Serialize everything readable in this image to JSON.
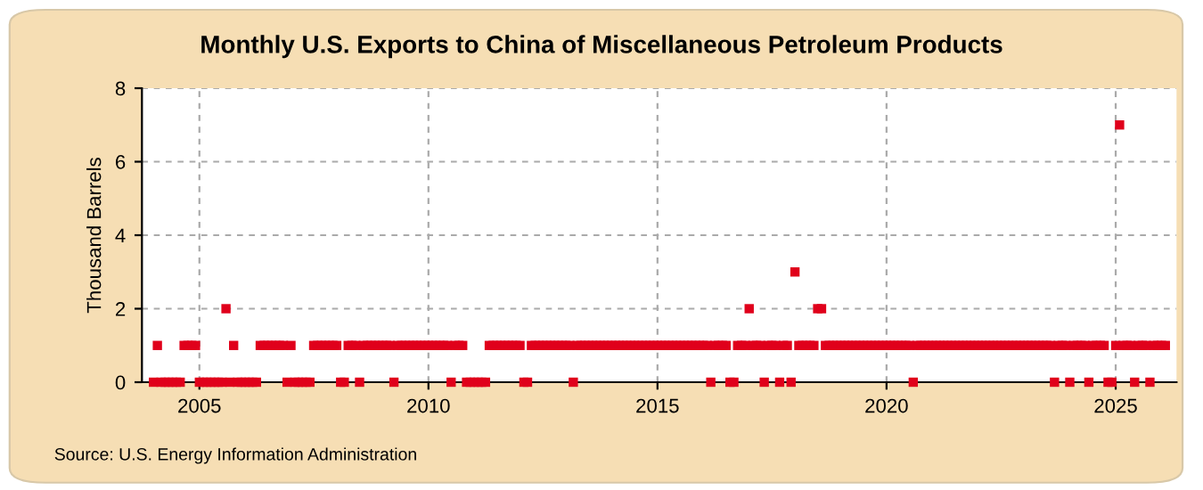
{
  "chart_data": {
    "type": "scatter",
    "title": "Monthly U.S. Exports to China of Miscellaneous Petroleum Products",
    "ylabel": "Thousand Barrels",
    "annotations": [
      "Source: U.S. Energy Information Administration"
    ],
    "x": [
      "2004-01",
      "2004-02",
      "2004-03",
      "2004-04",
      "2004-05",
      "2004-06",
      "2004-07",
      "2004-08",
      "2004-09",
      "2004-10",
      "2004-11",
      "2004-12",
      "2005-01",
      "2005-02",
      "2005-03",
      "2005-04",
      "2005-05",
      "2005-06",
      "2005-07",
      "2005-08",
      "2005-09",
      "2005-10",
      "2005-11",
      "2005-12",
      "2006-01",
      "2006-02",
      "2006-03",
      "2006-04",
      "2006-05",
      "2006-06",
      "2006-07",
      "2006-08",
      "2006-09",
      "2006-10",
      "2006-11",
      "2006-12",
      "2007-01",
      "2007-02",
      "2007-03",
      "2007-04",
      "2007-05",
      "2007-06",
      "2007-07",
      "2007-08",
      "2007-09",
      "2007-10",
      "2007-11",
      "2007-12",
      "2008-01",
      "2008-02",
      "2008-03",
      "2008-04",
      "2008-05",
      "2008-06",
      "2008-07",
      "2008-08",
      "2008-09",
      "2008-10",
      "2008-11",
      "2008-12",
      "2009-01",
      "2009-02",
      "2009-03",
      "2009-04",
      "2009-05",
      "2009-06",
      "2009-07",
      "2009-08",
      "2009-09",
      "2009-10",
      "2009-11",
      "2009-12",
      "2010-01",
      "2010-02",
      "2010-03",
      "2010-04",
      "2010-05",
      "2010-06",
      "2010-07",
      "2010-08",
      "2010-09",
      "2010-10",
      "2010-11",
      "2010-12",
      "2011-01",
      "2011-02",
      "2011-03",
      "2011-04",
      "2011-05",
      "2011-06",
      "2011-07",
      "2011-08",
      "2011-09",
      "2011-10",
      "2011-11",
      "2011-12",
      "2012-01",
      "2012-02",
      "2012-03",
      "2012-04",
      "2012-05",
      "2012-06",
      "2012-07",
      "2012-08",
      "2012-09",
      "2012-10",
      "2012-11",
      "2012-12",
      "2013-01",
      "2013-02",
      "2013-03",
      "2013-04",
      "2013-05",
      "2013-06",
      "2013-07",
      "2013-08",
      "2013-09",
      "2013-10",
      "2013-11",
      "2013-12",
      "2014-01",
      "2014-02",
      "2014-03",
      "2014-04",
      "2014-05",
      "2014-06",
      "2014-07",
      "2014-08",
      "2014-09",
      "2014-10",
      "2014-11",
      "2014-12",
      "2015-01",
      "2015-02",
      "2015-03",
      "2015-04",
      "2015-05",
      "2015-06",
      "2015-07",
      "2015-08",
      "2015-09",
      "2015-10",
      "2015-11",
      "2015-12",
      "2016-01",
      "2016-02",
      "2016-03",
      "2016-04",
      "2016-05",
      "2016-06",
      "2016-07",
      "2016-08",
      "2016-09",
      "2016-10",
      "2016-11",
      "2016-12",
      "2017-01",
      "2017-02",
      "2017-03",
      "2017-04",
      "2017-05",
      "2017-06",
      "2017-07",
      "2017-08",
      "2017-09",
      "2017-10",
      "2017-11",
      "2017-12",
      "2018-01",
      "2018-02",
      "2018-03",
      "2018-04",
      "2018-05",
      "2018-06",
      "2018-07",
      "2018-08",
      "2018-09",
      "2018-10",
      "2018-11",
      "2018-12",
      "2019-01",
      "2019-02",
      "2019-03",
      "2019-04",
      "2019-05",
      "2019-06",
      "2019-07",
      "2019-08",
      "2019-09",
      "2019-10",
      "2019-11",
      "2019-12",
      "2020-01",
      "2020-02",
      "2020-03",
      "2020-04",
      "2020-05",
      "2020-06",
      "2020-07",
      "2020-08",
      "2020-09",
      "2020-10",
      "2020-11",
      "2020-12",
      "2021-01",
      "2021-02",
      "2021-03",
      "2021-04",
      "2021-05",
      "2021-06",
      "2021-07",
      "2021-08",
      "2021-09",
      "2021-10",
      "2021-11",
      "2021-12",
      "2022-01",
      "2022-02",
      "2022-03",
      "2022-04",
      "2022-05",
      "2022-06",
      "2022-07",
      "2022-08",
      "2022-09",
      "2022-10",
      "2022-11",
      "2022-12",
      "2023-01",
      "2023-02",
      "2023-03",
      "2023-04",
      "2023-05",
      "2023-06",
      "2023-07",
      "2023-08",
      "2023-09",
      "2023-10",
      "2023-11",
      "2023-12",
      "2024-01",
      "2024-02",
      "2024-03",
      "2024-04",
      "2024-05",
      "2024-06",
      "2024-07",
      "2024-08",
      "2024-09",
      "2024-10",
      "2024-11",
      "2024-12",
      "2025-01",
      "2025-02",
      "2025-03",
      "2025-04",
      "2025-05",
      "2025-06",
      "2025-07",
      "2025-08",
      "2025-09",
      "2025-10",
      "2025-11",
      "2025-12",
      "2026-01",
      "2026-02"
    ],
    "series": [
      {
        "color": "#e0001b",
        "values": [
          0,
          1,
          0,
          0,
          0,
          0,
          0,
          0,
          1,
          1,
          1,
          1,
          0,
          0,
          0,
          0,
          0,
          0,
          0,
          2,
          0,
          1,
          0,
          0,
          0,
          0,
          0,
          0,
          1,
          1,
          1,
          1,
          1,
          1,
          1,
          0,
          1,
          0,
          0,
          0,
          0,
          0,
          1,
          1,
          1,
          1,
          1,
          1,
          1,
          0,
          0,
          1,
          1,
          1,
          0,
          1,
          1,
          1,
          1,
          1,
          1,
          1,
          1,
          0,
          1,
          1,
          1,
          1,
          1,
          1,
          1,
          1,
          1,
          1,
          1,
          1,
          1,
          1,
          0,
          1,
          1,
          1,
          0,
          0,
          0,
          0,
          0,
          0,
          1,
          1,
          1,
          1,
          1,
          1,
          1,
          1,
          1,
          0,
          0,
          1,
          1,
          1,
          1,
          1,
          1,
          1,
          1,
          1,
          1,
          1,
          0,
          1,
          1,
          1,
          1,
          1,
          1,
          1,
          1,
          1,
          1,
          1,
          1,
          1,
          1,
          1,
          1,
          1,
          1,
          1,
          1,
          1,
          1,
          1,
          1,
          1,
          1,
          1,
          1,
          1,
          1,
          1,
          1,
          1,
          1,
          1,
          0,
          1,
          1,
          1,
          1,
          0,
          0,
          1,
          1,
          1,
          2,
          1,
          1,
          1,
          0,
          1,
          1,
          1,
          0,
          1,
          1,
          0,
          3,
          1,
          1,
          1,
          1,
          1,
          2,
          2,
          1,
          1,
          1,
          1,
          1,
          1,
          1,
          1,
          1,
          1,
          1,
          1,
          1,
          1,
          1,
          1,
          1,
          1,
          1,
          1,
          1,
          1,
          1,
          0,
          1,
          1,
          1,
          1,
          1,
          1,
          1,
          1,
          1,
          1,
          1,
          1,
          1,
          1,
          1,
          1,
          1,
          1,
          1,
          1,
          1,
          1,
          1,
          1,
          1,
          1,
          1,
          1,
          1,
          1,
          1,
          1,
          1,
          1,
          1,
          1,
          0,
          1,
          1,
          1,
          0,
          1,
          1,
          1,
          1,
          0,
          1,
          1,
          1,
          1,
          0,
          0,
          1,
          7,
          1,
          1,
          1,
          0,
          1,
          1,
          1,
          0,
          1,
          1,
          1,
          1
        ]
      }
    ],
    "xlim": [
      "2003-10",
      "2026-05"
    ],
    "xticks": [
      {
        "value": "2005-01",
        "label": "2005"
      },
      {
        "value": "2010-01",
        "label": "2010"
      },
      {
        "value": "2015-01",
        "label": "2015"
      },
      {
        "value": "2020-01",
        "label": "2020"
      },
      {
        "value": "2025-01",
        "label": "2025"
      }
    ],
    "ylim": [
      0,
      8
    ],
    "yticks": [
      0,
      2,
      4,
      6,
      8
    ],
    "grid": true,
    "marker": "square",
    "legend": false
  }
}
